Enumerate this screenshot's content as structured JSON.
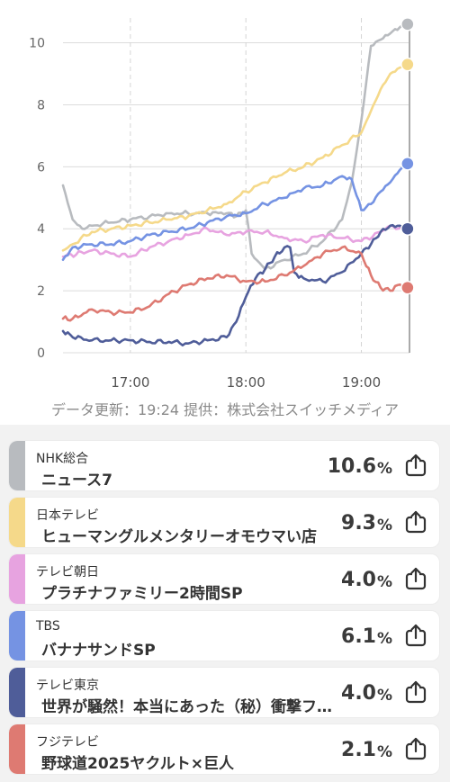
{
  "chart_data": {
    "type": "line",
    "x_ticks": [
      "17:00",
      "18:00",
      "19:00"
    ],
    "x_range": [
      "16:25",
      "19:25"
    ],
    "y_ticks": [
      "0",
      "2",
      "4",
      "6",
      "8",
      "10"
    ],
    "ylim": [
      0,
      10.8
    ],
    "grid": "horizontal gridlines solid, vertical dashed at hours",
    "series": [
      {
        "name": "NHK総合",
        "color": "#b8bbbf",
        "x": [
          "16:25",
          "16:30",
          "16:35",
          "16:40",
          "16:50",
          "17:00",
          "17:10",
          "17:20",
          "17:30",
          "17:40",
          "17:50",
          "17:55",
          "18:00",
          "18:03",
          "18:10",
          "18:20",
          "18:30",
          "18:40",
          "18:50",
          "18:55",
          "19:00",
          "19:05",
          "19:10",
          "19:15",
          "19:20",
          "19:24"
        ],
        "y": [
          5.4,
          4.3,
          4.0,
          4.1,
          4.2,
          4.3,
          4.4,
          4.5,
          4.5,
          4.5,
          4.5,
          4.4,
          4.6,
          3.2,
          2.7,
          3.0,
          3.2,
          3.6,
          4.3,
          5.5,
          7.5,
          9.9,
          10.1,
          10.3,
          10.5,
          10.6
        ]
      },
      {
        "name": "日本テレビ",
        "color": "#f5d98a",
        "x": [
          "16:25",
          "16:30",
          "16:40",
          "16:50",
          "17:00",
          "17:10",
          "17:20",
          "17:30",
          "17:40",
          "17:50",
          "18:00",
          "18:10",
          "18:20",
          "18:30",
          "18:40",
          "18:50",
          "19:00",
          "19:05",
          "19:10",
          "19:15",
          "19:20",
          "19:24"
        ],
        "y": [
          3.3,
          3.5,
          3.9,
          4.0,
          4.1,
          4.2,
          4.3,
          4.4,
          4.6,
          4.8,
          5.2,
          5.5,
          5.8,
          6.0,
          6.3,
          6.7,
          7.1,
          7.8,
          8.5,
          9.0,
          9.2,
          9.3
        ]
      },
      {
        "name": "テレビ朝日",
        "color": "#e7a3e0",
        "x": [
          "16:25",
          "16:40",
          "16:50",
          "17:00",
          "17:10",
          "17:20",
          "17:30",
          "17:40",
          "17:50",
          "18:00",
          "18:10",
          "18:20",
          "18:30",
          "18:40",
          "18:50",
          "19:00",
          "19:10",
          "19:15",
          "19:24"
        ],
        "y": [
          3.1,
          3.3,
          3.2,
          3.1,
          3.4,
          3.6,
          3.8,
          4.0,
          3.8,
          3.9,
          3.9,
          3.7,
          3.6,
          3.8,
          3.7,
          3.6,
          3.9,
          4.1,
          4.0
        ]
      },
      {
        "name": "TBS",
        "color": "#7593e3",
        "x": [
          "16:25",
          "16:30",
          "16:40",
          "16:50",
          "17:00",
          "17:10",
          "17:20",
          "17:30",
          "17:40",
          "17:50",
          "18:00",
          "18:10",
          "18:20",
          "18:30",
          "18:40",
          "18:50",
          "18:55",
          "19:00",
          "19:05",
          "19:10",
          "19:15",
          "19:20",
          "19:24"
        ],
        "y": [
          3.0,
          3.4,
          3.5,
          3.5,
          3.6,
          3.8,
          3.9,
          4.0,
          4.2,
          4.4,
          4.5,
          4.8,
          5.0,
          5.3,
          5.4,
          5.7,
          5.6,
          4.6,
          4.8,
          5.2,
          5.5,
          5.9,
          6.1
        ]
      },
      {
        "name": "テレビ東京",
        "color": "#4f5d99",
        "x": [
          "16:25",
          "16:30",
          "16:40",
          "16:50",
          "17:00",
          "17:10",
          "17:20",
          "17:30",
          "17:40",
          "17:50",
          "17:55",
          "18:00",
          "18:05",
          "18:10",
          "18:15",
          "18:20",
          "18:23",
          "18:25",
          "18:30",
          "18:40",
          "18:50",
          "19:00",
          "19:05",
          "19:10",
          "19:15",
          "19:20",
          "19:24"
        ],
        "y": [
          0.7,
          0.5,
          0.4,
          0.4,
          0.4,
          0.35,
          0.35,
          0.3,
          0.4,
          0.5,
          1.0,
          1.8,
          2.4,
          2.7,
          3.1,
          3.4,
          3.4,
          2.6,
          2.4,
          2.3,
          2.6,
          3.2,
          3.5,
          3.9,
          4.1,
          4.1,
          4.0
        ]
      },
      {
        "name": "フジテレビ",
        "color": "#de7a72",
        "x": [
          "16:25",
          "16:30",
          "16:40",
          "16:50",
          "17:00",
          "17:10",
          "17:20",
          "17:30",
          "17:40",
          "17:50",
          "18:00",
          "18:10",
          "18:20",
          "18:30",
          "18:40",
          "18:50",
          "19:00",
          "19:05",
          "19:10",
          "19:15",
          "19:20",
          "19:24"
        ],
        "y": [
          1.1,
          1.1,
          1.4,
          1.3,
          1.3,
          1.5,
          1.9,
          2.2,
          2.4,
          2.5,
          2.3,
          2.3,
          2.5,
          2.8,
          3.2,
          3.4,
          3.2,
          2.5,
          2.1,
          2.0,
          2.2,
          2.1
        ]
      }
    ]
  },
  "footnote": "データ更新：19:24  提供：株式会社スイッチメディア",
  "channels": [
    {
      "station": "NHK総合",
      "program": "ニュース7",
      "rating": "10.6",
      "unit": "%",
      "color": "#b8bbbf"
    },
    {
      "station": "日本テレビ",
      "program": "ヒューマングルメンタリーオモウマい店",
      "rating": "9.3",
      "unit": "%",
      "color": "#f5d98a"
    },
    {
      "station": "テレビ朝日",
      "program": "プラチナファミリー2時間SP",
      "rating": "4.0",
      "unit": "%",
      "color": "#e7a3e0"
    },
    {
      "station": "TBS",
      "program": "バナナサンドSP",
      "rating": "6.1",
      "unit": "%",
      "color": "#7593e3"
    },
    {
      "station": "テレビ東京",
      "program": "世界が騒然！本当にあった（秘）衝撃ファイル",
      "rating": "4.0",
      "unit": "%",
      "color": "#4f5d99"
    },
    {
      "station": "フジテレビ",
      "program": "野球道2025ヤクルト×巨人",
      "rating": "2.1",
      "unit": "%",
      "color": "#de7a72"
    }
  ],
  "icons": {
    "share": "share-icon"
  }
}
